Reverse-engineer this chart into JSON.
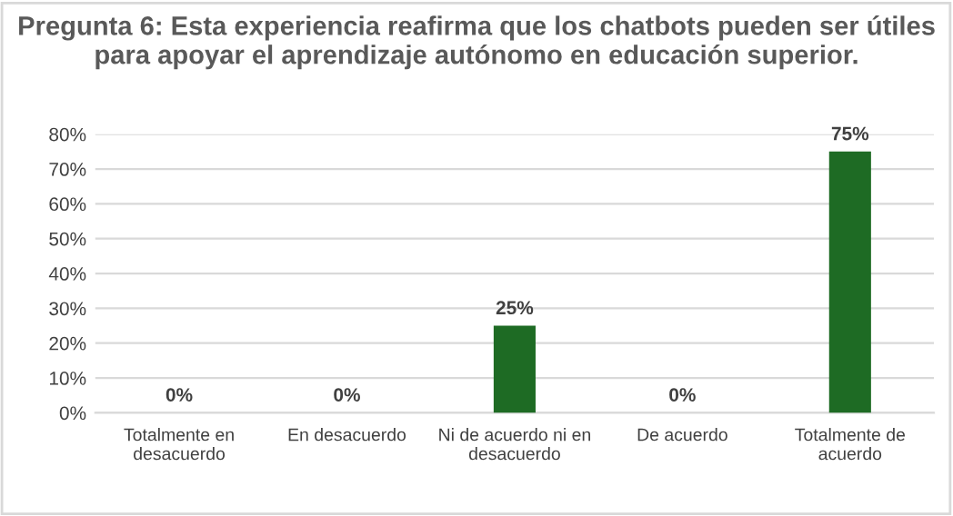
{
  "chart_data": {
    "type": "bar",
    "title": "Pregunta 6: Esta experiencia reafirma que los chatbots pueden ser útiles para apoyar el aprendizaje autónomo en educación superior.",
    "categories": [
      "Totalmente en desacuerdo",
      "En desacuerdo",
      "Ni de acuerdo ni en desacuerdo",
      "De acuerdo",
      "Totalmente de acuerdo"
    ],
    "values": [
      0,
      0,
      25,
      0,
      75
    ],
    "value_labels": [
      "0%",
      "0%",
      "25%",
      "0%",
      "75%"
    ],
    "color": "#1e6b24",
    "ylim": [
      0,
      80
    ],
    "yticks": [
      {
        "value": 0,
        "label": "0%"
      },
      {
        "value": 10,
        "label": "10%"
      },
      {
        "value": 20,
        "label": "20%"
      },
      {
        "value": 30,
        "label": "30%"
      },
      {
        "value": 40,
        "label": "40%"
      },
      {
        "value": 50,
        "label": "50%"
      },
      {
        "value": 60,
        "label": "60%"
      },
      {
        "value": 70,
        "label": "70%"
      },
      {
        "value": 80,
        "label": "80%"
      }
    ],
    "grid": "y"
  }
}
